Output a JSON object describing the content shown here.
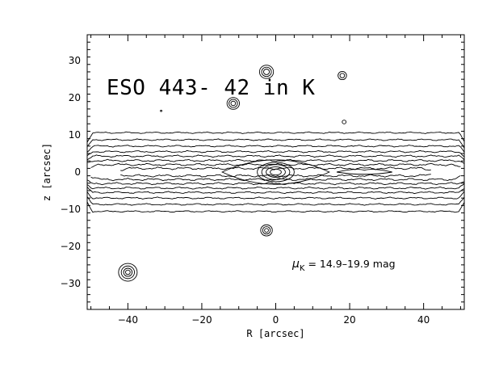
{
  "chart_data": {
    "type": "contour",
    "title": "ESO 443- 42 in K",
    "xlabel": "R [arcsec]",
    "ylabel": "z [arcsec]",
    "xlim": [
      -51,
      51
    ],
    "ylim": [
      -37,
      37
    ],
    "x_ticks": [
      -40,
      -20,
      0,
      20,
      40
    ],
    "x_tick_labels": [
      "−40",
      "−20",
      "0",
      "20",
      "40"
    ],
    "y_ticks": [
      -30,
      -20,
      -10,
      0,
      10,
      20,
      30
    ],
    "y_tick_labels": [
      "−30",
      "−20",
      "−10",
      "0",
      "10",
      "20",
      "30"
    ],
    "grid": false,
    "annotation": {
      "symbol": "μ",
      "subscript": "K",
      "text": " = 14.9–19.9 mag"
    },
    "galaxy_isophotes": [
      {
        "half_width": 52,
        "half_height": 10.6
      },
      {
        "half_width": 52,
        "half_height": 8.7
      },
      {
        "half_width": 52,
        "half_height": 7.0
      },
      {
        "half_width": 52,
        "half_height": 5.5
      },
      {
        "half_width": 52,
        "half_height": 4.3
      },
      {
        "half_width": 52,
        "half_height": 3.1
      },
      {
        "half_width": 50,
        "half_height": 2.0
      },
      {
        "half_width": 42,
        "half_height": 1.0
      }
    ],
    "bulge_contours": [
      {
        "x": 0,
        "z": 0,
        "half_width": 14.5,
        "half_height": 3.3,
        "shape": "lens"
      },
      {
        "x": 0,
        "z": 0,
        "half_width": 5.0,
        "half_height": 2.6,
        "shape": "ellipse"
      },
      {
        "x": 0,
        "z": 0,
        "half_width": 3.8,
        "half_height": 2.0,
        "shape": "ellipse"
      },
      {
        "x": 0,
        "z": 0,
        "half_width": 2.6,
        "half_height": 1.4,
        "shape": "ellipse"
      },
      {
        "x": 0,
        "z": 0,
        "half_width": 1.5,
        "half_height": 0.8,
        "shape": "ellipse"
      }
    ],
    "disk_feature": {
      "x": 24,
      "z": 0,
      "half_width": 7.5,
      "half_height": 0.6
    },
    "point_sources": [
      {
        "x": -2.5,
        "z": 27.0,
        "rings": [
          1.8,
          1.25,
          0.75
        ]
      },
      {
        "x": -11.5,
        "z": 18.5,
        "rings": [
          1.6,
          1.1,
          0.6
        ]
      },
      {
        "x": 18.0,
        "z": 26.0,
        "rings": [
          1.1,
          0.6
        ]
      },
      {
        "x": 18.5,
        "z": 13.5,
        "rings": [
          0.5
        ]
      },
      {
        "x": -2.5,
        "z": -15.7,
        "rings": [
          1.5,
          1.0,
          0.5
        ]
      },
      {
        "x": -40.0,
        "z": -27.0,
        "rings": [
          2.4,
          1.7,
          1.1,
          0.6
        ]
      },
      {
        "x": -31.0,
        "z": 16.5,
        "rings": [
          0.2
        ]
      }
    ]
  }
}
